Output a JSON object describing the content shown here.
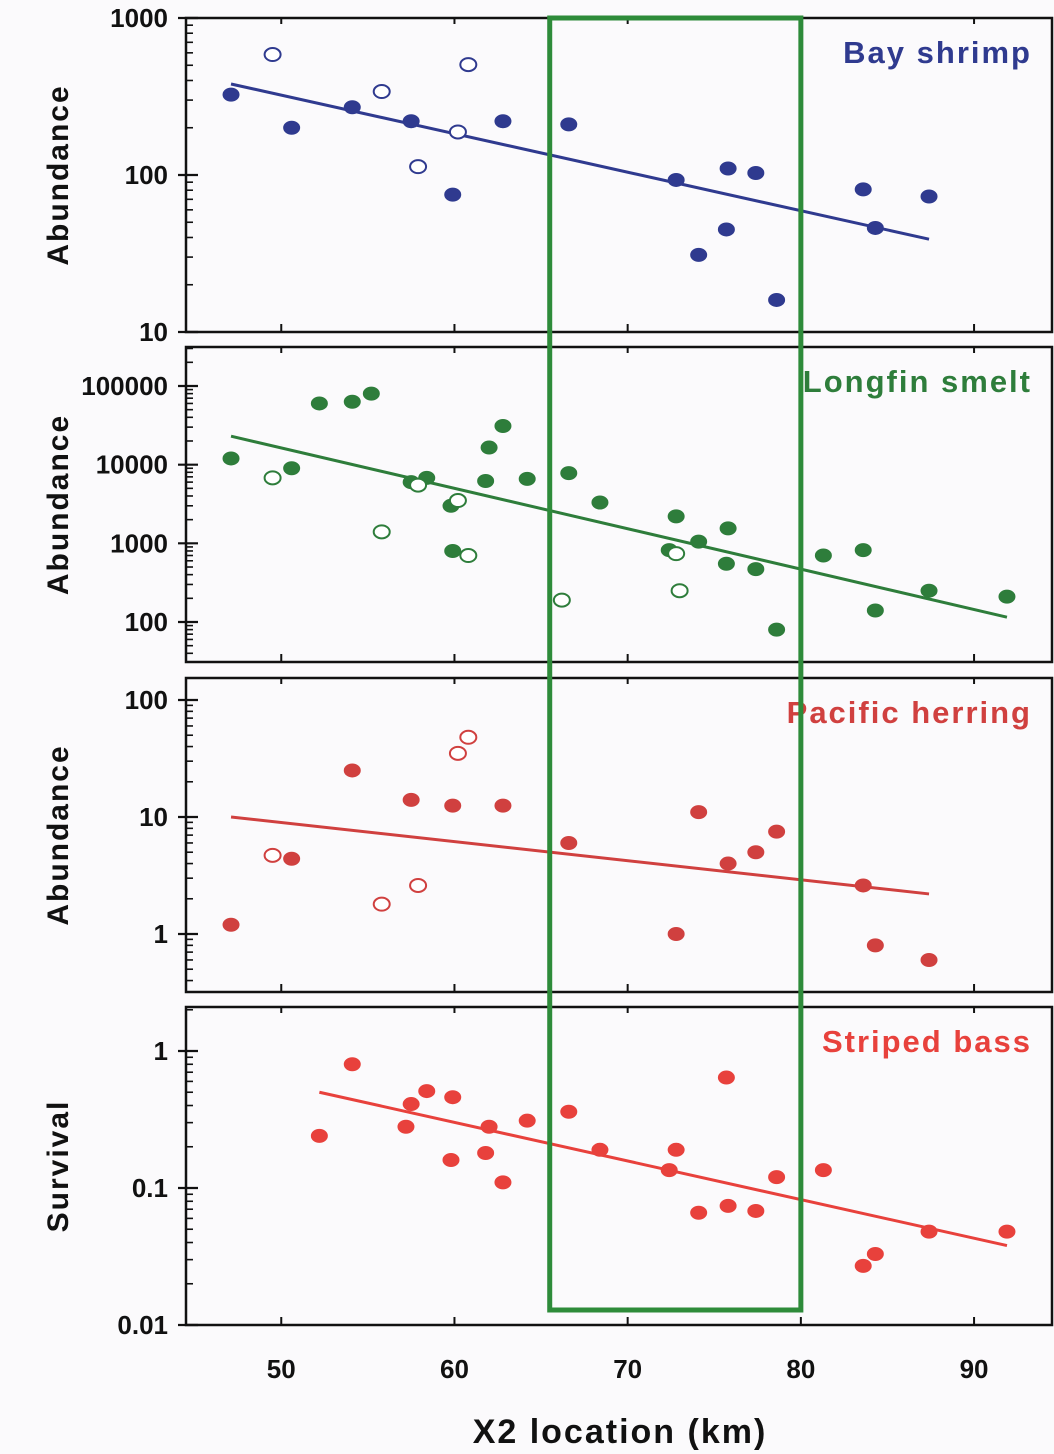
{
  "figure": {
    "xlabel": "X2 location (km)",
    "x_ticks": [
      50,
      60,
      70,
      80,
      90
    ],
    "x_range": [
      44.5,
      94.5
    ],
    "highlight_box": {
      "x_range": [
        65.5,
        80
      ],
      "color": "#2e8b3a"
    }
  },
  "chart_data": [
    {
      "type": "scatter",
      "title": "Bay shrimp",
      "ylabel": "Abundance",
      "yscale": "log",
      "ylim": [
        10,
        1000
      ],
      "y_ticks": [
        "10",
        "100",
        "1000"
      ],
      "y_tick_values": [
        10,
        100,
        1000
      ],
      "color": "#2f3a8f",
      "series": [
        {
          "marker": "filled",
          "points": [
            [
              47.1,
              325
            ],
            [
              50.6,
              200
            ],
            [
              54.1,
              270
            ],
            [
              57.5,
              220
            ],
            [
              59.9,
              75
            ],
            [
              62.8,
              220
            ],
            [
              66.6,
              210
            ],
            [
              72.8,
              93
            ],
            [
              74.1,
              31
            ],
            [
              75.7,
              45
            ],
            [
              75.8,
              110
            ],
            [
              77.4,
              103
            ],
            [
              78.6,
              16
            ],
            [
              83.6,
              81
            ],
            [
              84.3,
              46
            ],
            [
              87.4,
              73
            ]
          ]
        },
        {
          "marker": "open",
          "points": [
            [
              49.5,
              585
            ],
            [
              55.8,
              340
            ],
            [
              57.9,
              113
            ],
            [
              60.2,
              188
            ],
            [
              60.8,
              505
            ]
          ]
        }
      ],
      "trend": [
        [
          47.1,
          380
        ],
        [
          87.4,
          39
        ]
      ]
    },
    {
      "type": "scatter",
      "title": "Longfin smelt",
      "ylabel": "Abundance",
      "yscale": "log",
      "ylim": [
        30,
        300000
      ],
      "y_ticks": [
        "100",
        "1000",
        "10000",
        "100000"
      ],
      "y_tick_values": [
        100,
        1000,
        10000,
        100000
      ],
      "color": "#2e7d3b",
      "series": [
        {
          "marker": "filled",
          "points": [
            [
              47.1,
              12000
            ],
            [
              50.6,
              9000
            ],
            [
              52.2,
              60000
            ],
            [
              54.1,
              63000
            ],
            [
              55.2,
              80000
            ],
            [
              57.5,
              6000
            ],
            [
              58.4,
              6800
            ],
            [
              59.8,
              3000
            ],
            [
              59.9,
              800
            ],
            [
              61.8,
              6200
            ],
            [
              62.0,
              16500
            ],
            [
              62.8,
              31000
            ],
            [
              64.2,
              6600
            ],
            [
              66.6,
              7800
            ],
            [
              68.4,
              3300
            ],
            [
              72.8,
              2200
            ],
            [
              72.4,
              820
            ],
            [
              74.1,
              1050
            ],
            [
              75.7,
              550
            ],
            [
              75.8,
              1550
            ],
            [
              77.4,
              470
            ],
            [
              78.6,
              80
            ],
            [
              81.3,
              700
            ],
            [
              83.6,
              820
            ],
            [
              84.3,
              140
            ],
            [
              87.4,
              250
            ],
            [
              91.9,
              210
            ]
          ]
        },
        {
          "marker": "open",
          "points": [
            [
              49.5,
              6800
            ],
            [
              55.8,
              1400
            ],
            [
              57.9,
              5500
            ],
            [
              60.2,
              3500
            ],
            [
              60.8,
              700
            ],
            [
              66.2,
              190
            ],
            [
              72.8,
              740
            ],
            [
              73.0,
              250
            ]
          ]
        }
      ],
      "trend": [
        [
          47.1,
          23000
        ],
        [
          91.9,
          115
        ]
      ]
    },
    {
      "type": "scatter",
      "title": "Pacific herring",
      "ylabel": "Abundance",
      "yscale": "log",
      "ylim": [
        0.3,
        100
      ],
      "y_ticks": [
        "1",
        "10",
        "100"
      ],
      "y_tick_values": [
        1,
        10,
        100
      ],
      "color": "#d0403f",
      "series": [
        {
          "marker": "filled",
          "points": [
            [
              47.1,
              1.2
            ],
            [
              50.6,
              4.4
            ],
            [
              54.1,
              25
            ],
            [
              57.5,
              14
            ],
            [
              59.9,
              12.5
            ],
            [
              62.8,
              12.5
            ],
            [
              66.6,
              6.0
            ],
            [
              72.8,
              1.0
            ],
            [
              74.1,
              11
            ],
            [
              75.8,
              4.0
            ],
            [
              77.4,
              5.0
            ],
            [
              78.6,
              7.5
            ],
            [
              83.6,
              2.6
            ],
            [
              84.3,
              0.8
            ],
            [
              87.4,
              0.6
            ]
          ]
        },
        {
          "marker": "open",
          "points": [
            [
              49.5,
              4.7
            ],
            [
              55.8,
              1.8
            ],
            [
              57.9,
              2.6
            ],
            [
              60.2,
              35
            ],
            [
              60.8,
              48
            ]
          ]
        }
      ],
      "trend": [
        [
          47.1,
          10
        ],
        [
          87.4,
          2.2
        ]
      ]
    },
    {
      "type": "scatter",
      "title": "Striped bass",
      "ylabel": "Survival",
      "yscale": "log",
      "ylim": [
        0.01,
        2
      ],
      "y_ticks": [
        "0.01",
        "0.1",
        "1"
      ],
      "y_tick_values": [
        0.01,
        0.1,
        1
      ],
      "color": "#e8413c",
      "series": [
        {
          "marker": "filled",
          "points": [
            [
              52.2,
              0.24
            ],
            [
              54.1,
              0.8
            ],
            [
              57.2,
              0.28
            ],
            [
              57.5,
              0.41
            ],
            [
              58.4,
              0.51
            ],
            [
              59.8,
              0.16
            ],
            [
              59.9,
              0.46
            ],
            [
              61.8,
              0.18
            ],
            [
              62.0,
              0.28
            ],
            [
              62.8,
              0.11
            ],
            [
              64.2,
              0.31
            ],
            [
              66.6,
              0.36
            ],
            [
              68.4,
              0.19
            ],
            [
              72.4,
              0.135
            ],
            [
              72.8,
              0.19
            ],
            [
              74.1,
              0.066
            ],
            [
              75.7,
              0.64
            ],
            [
              75.8,
              0.074
            ],
            [
              77.4,
              0.068
            ],
            [
              78.6,
              0.12
            ],
            [
              81.3,
              0.135
            ],
            [
              83.6,
              0.027
            ],
            [
              84.3,
              0.033
            ],
            [
              87.4,
              0.048
            ],
            [
              91.9,
              0.048
            ]
          ]
        }
      ],
      "trend": [
        [
          52.2,
          0.5
        ],
        [
          91.9,
          0.038
        ]
      ]
    }
  ]
}
